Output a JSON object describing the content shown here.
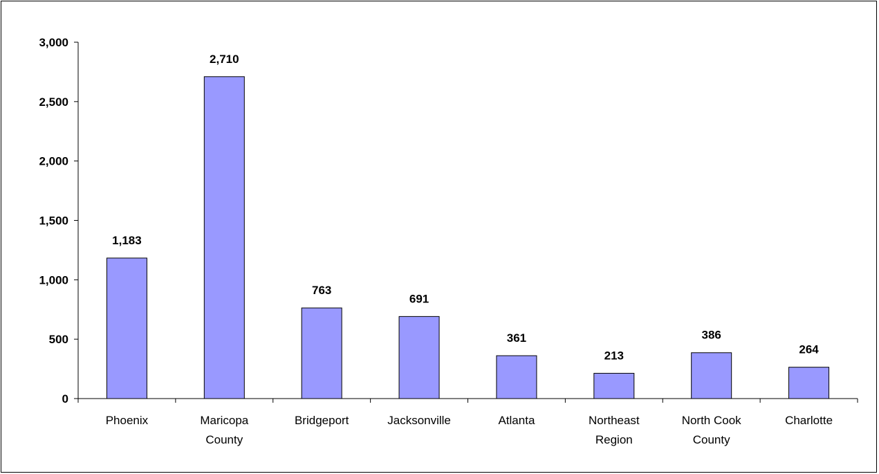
{
  "chart_data": {
    "type": "bar",
    "categories": [
      [
        "Phoenix"
      ],
      [
        "Maricopa",
        "County"
      ],
      [
        "Bridgeport"
      ],
      [
        "Jacksonville"
      ],
      [
        "Atlanta"
      ],
      [
        "Northeast",
        "Region"
      ],
      [
        "North Cook",
        "County"
      ],
      [
        "Charlotte"
      ]
    ],
    "values": [
      1183,
      2710,
      763,
      691,
      361,
      213,
      386,
      264
    ],
    "value_labels": [
      "1,183",
      "2,710",
      "763",
      "691",
      "361",
      "213",
      "386",
      "264"
    ],
    "ylim": [
      0,
      3000
    ],
    "yticks": [
      0,
      500,
      1000,
      1500,
      2000,
      2500,
      3000
    ],
    "ytick_labels": [
      "0",
      "500",
      "1,000",
      "1,500",
      "2,000",
      "2,500",
      "3,000"
    ],
    "title": "",
    "xlabel": "",
    "ylabel": "",
    "grid": false,
    "bar_color": "#9999FF",
    "bar_edge_color": "#000000"
  }
}
